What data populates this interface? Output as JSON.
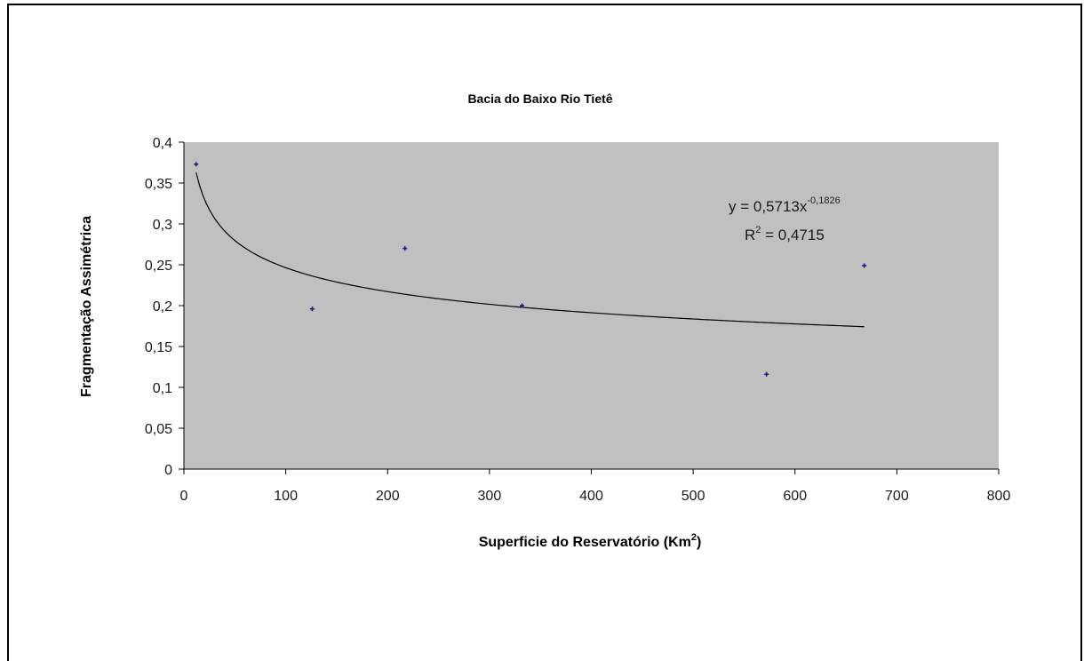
{
  "chart_data": {
    "type": "scatter",
    "title": "Bacia do Baixo Rio Tietê",
    "xlabel": "Superficie do Reservatório (Km",
    "xlabel_sup": "2",
    "xlabel_close": ")",
    "ylabel": "Fragmentação Assimétrica",
    "xlim": [
      0,
      800
    ],
    "ylim": [
      0,
      0.4
    ],
    "x_ticks": [
      0,
      100,
      200,
      300,
      400,
      500,
      600,
      700,
      800
    ],
    "x_tick_labels": [
      "0",
      "100",
      "200",
      "300",
      "400",
      "500",
      "600",
      "700",
      "800"
    ],
    "y_ticks": [
      0,
      0.05,
      0.1,
      0.15,
      0.2,
      0.25,
      0.3,
      0.35,
      0.4
    ],
    "y_tick_labels": [
      "0",
      "0,05",
      "0,1",
      "0,15",
      "0,2",
      "0,25",
      "0,3",
      "0,35",
      "0,4"
    ],
    "grid": false,
    "plot_background": "#c0c0c0",
    "point_color": "#1a1a80",
    "series": [
      {
        "x": [
          12,
          126,
          217,
          332,
          572,
          668
        ],
        "y": [
          0.373,
          0.196,
          0.27,
          0.2,
          0.116,
          0.249
        ]
      }
    ],
    "trendline": {
      "type": "power",
      "a": 0.5713,
      "b": -0.1826,
      "x_range": [
        12,
        668
      ],
      "equation_text": "y = 0,5713x",
      "equation_exponent": "-0,1826",
      "r2_label": "R",
      "r2_sup": "2",
      "r2_value_text": " = 0,4715"
    }
  }
}
